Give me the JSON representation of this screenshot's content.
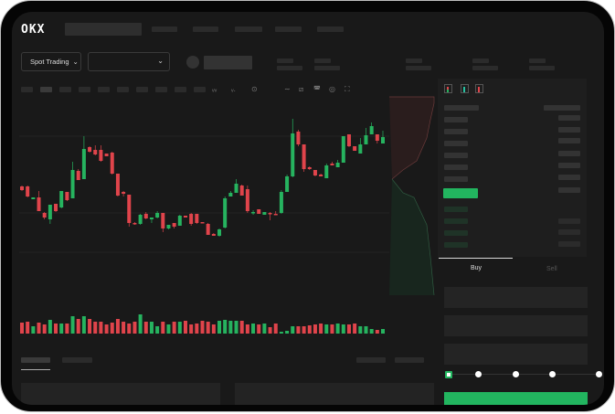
{
  "header": {
    "logo": "OKX"
  },
  "market": {
    "mode_label": "Spot Trading",
    "pair_select_value": ""
  },
  "toolbar": {
    "icons": [
      "indicator-icon",
      "template-icon",
      "settings-icon",
      "line-icon",
      "ruler-icon",
      "camera-icon",
      "target-icon",
      "fullscreen-icon"
    ]
  },
  "orderbook": {
    "view_icons": [
      "both-sides-icon",
      "bids-only-icon",
      "asks-only-icon"
    ]
  },
  "trade": {
    "buy_label": "Buy",
    "sell_label": "Sell",
    "leverage_fraction": 0,
    "submit_color": "#22b55f"
  },
  "colors": {
    "up": "#26b35f",
    "down": "#e0444b",
    "background": "#191919"
  },
  "chart_data": {
    "type": "candlestick",
    "candles": [
      [
        97,
        98,
        92,
        93
      ],
      [
        97,
        98,
        85,
        86
      ],
      [
        83,
        85,
        83,
        85
      ],
      [
        85,
        92,
        70,
        70
      ],
      [
        68,
        69,
        61,
        63
      ],
      [
        61,
        77,
        56,
        77
      ],
      [
        78,
        78,
        69,
        70
      ],
      [
        74,
        92,
        73,
        92
      ],
      [
        91,
        91,
        81,
        82
      ],
      [
        84,
        124,
        84,
        115
      ],
      [
        114,
        116,
        104,
        104
      ],
      [
        105,
        152,
        105,
        138
      ],
      [
        140,
        141,
        134,
        135
      ],
      [
        137,
        142,
        131,
        132
      ],
      [
        137,
        142,
        124,
        125
      ],
      [
        133,
        133,
        130,
        130
      ],
      [
        134,
        135,
        110,
        111
      ],
      [
        111,
        111,
        86,
        87
      ],
      [
        91,
        92,
        86,
        89
      ],
      [
        88,
        88,
        53,
        57
      ],
      [
        57,
        58,
        55,
        56
      ],
      [
        56,
        67,
        55,
        66
      ],
      [
        67,
        69,
        61,
        62
      ],
      [
        61,
        63,
        57,
        63
      ],
      [
        63,
        70,
        62,
        68
      ],
      [
        68,
        68,
        47,
        51
      ],
      [
        51,
        55,
        50,
        55
      ],
      [
        57,
        57,
        51,
        53
      ],
      [
        54,
        66,
        54,
        65
      ],
      [
        65,
        65,
        63,
        63
      ],
      [
        67,
        68,
        54,
        56
      ],
      [
        67,
        67,
        56,
        57
      ],
      [
        58,
        58,
        57,
        57
      ],
      [
        56,
        57,
        44,
        44
      ],
      [
        45,
        46,
        43,
        43
      ],
      [
        43,
        51,
        42,
        50
      ],
      [
        52,
        86,
        51,
        84
      ],
      [
        86,
        92,
        86,
        90
      ],
      [
        90,
        105,
        90,
        100
      ],
      [
        98,
        99,
        87,
        87
      ],
      [
        94,
        98,
        68,
        70
      ],
      [
        68,
        71,
        66,
        69
      ],
      [
        72,
        72,
        67,
        67
      ],
      [
        66,
        69,
        66,
        69
      ],
      [
        68,
        69,
        60,
        67
      ],
      [
        67,
        70,
        66,
        66
      ],
      [
        68,
        93,
        67,
        91
      ],
      [
        91,
        110,
        91,
        108
      ],
      [
        108,
        171,
        107,
        155
      ],
      [
        157,
        159,
        141,
        143
      ],
      [
        143,
        143,
        113,
        116
      ],
      [
        118,
        119,
        115,
        116
      ],
      [
        115,
        115,
        108,
        109
      ],
      [
        110,
        111,
        108,
        108
      ],
      [
        106,
        122,
        106,
        120
      ],
      [
        122,
        124,
        120,
        120
      ],
      [
        118,
        126,
        118,
        123
      ],
      [
        123,
        152,
        123,
        152
      ],
      [
        154,
        154,
        140,
        141
      ],
      [
        141,
        141,
        136,
        136
      ],
      [
        133,
        150,
        133,
        143
      ],
      [
        143,
        161,
        143,
        153
      ],
      [
        154,
        167,
        154,
        163
      ],
      [
        154,
        154,
        144,
        147
      ],
      [
        144,
        158,
        144,
        151
      ]
    ],
    "volume": [
      12,
      13,
      8,
      12,
      10,
      15,
      11,
      11,
      11,
      19,
      16,
      19,
      16,
      13,
      13,
      10,
      12,
      16,
      13,
      11,
      13,
      21,
      13,
      13,
      8,
      13,
      10,
      13,
      13,
      14,
      10,
      11,
      14,
      13,
      10,
      14,
      15,
      14,
      14,
      14,
      10,
      11,
      10,
      11,
      7,
      11,
      2,
      3,
      8,
      8,
      8,
      9,
      10,
      11,
      10,
      10,
      11,
      10,
      10,
      11,
      8,
      8,
      5,
      4,
      5
    ]
  }
}
